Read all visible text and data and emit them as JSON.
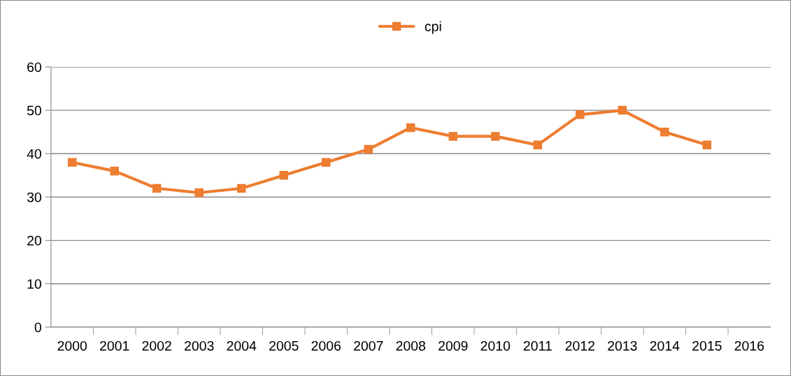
{
  "chart_data": {
    "type": "line",
    "categories": [
      "2000",
      "2001",
      "2002",
      "2003",
      "2004",
      "2005",
      "2006",
      "2007",
      "2008",
      "2009",
      "2010",
      "2011",
      "2012",
      "2013",
      "2014",
      "2015",
      "2016"
    ],
    "series": [
      {
        "name": "cpi",
        "color": "#ed7d31",
        "values": [
          38,
          36,
          32,
          31,
          32,
          35,
          38,
          41,
          46,
          44,
          44,
          42,
          49,
          50,
          45,
          42,
          null
        ]
      }
    ],
    "ylim": [
      0,
      60
    ],
    "yticks": [
      0,
      10,
      20,
      30,
      40,
      50,
      60
    ],
    "grid": "y",
    "legend": "top",
    "marker": "square",
    "line_style": "solid"
  }
}
